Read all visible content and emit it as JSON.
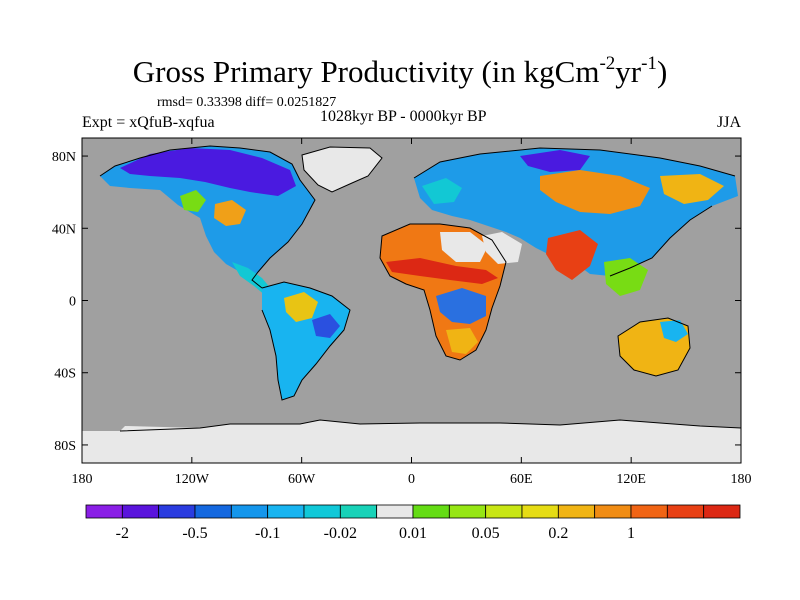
{
  "title": {
    "main": "Gross Primary Productivity (in kgCm",
    "exp1": "-2",
    "mid": "yr",
    "exp2": "-1",
    "end": ")"
  },
  "stats": {
    "rmsd_label": "rmsd= 0.33398",
    "diff_label": "diff= 0.0251827"
  },
  "experiment": "Expt = xQfuB-xqfua",
  "period": "1028kyr BP - 0000kyr BP",
  "season": "JJA",
  "colors": {
    "ocean": "#a0a0a0",
    "ice": "#e8e8e8",
    "coast": "#000000"
  },
  "lat_labels": [
    {
      "label": "80N",
      "value": 80
    },
    {
      "label": "40N",
      "value": 40
    },
    {
      "label": "0",
      "value": 0
    },
    {
      "label": "40S",
      "value": -40
    },
    {
      "label": "80S",
      "value": -80
    }
  ],
  "lon_labels": [
    {
      "label": "180",
      "value": -180
    },
    {
      "label": "120W",
      "value": -120
    },
    {
      "label": "60W",
      "value": -60
    },
    {
      "label": "0",
      "value": 0
    },
    {
      "label": "60E",
      "value": 60
    },
    {
      "label": "120E",
      "value": 120
    },
    {
      "label": "180",
      "value": 180
    }
  ],
  "colorbar": {
    "colors": [
      "#8a1ee6",
      "#5a14dc",
      "#2a3ce0",
      "#1468e0",
      "#1496ec",
      "#18b4f0",
      "#10c8d8",
      "#18d2b8",
      "#e8e8e8",
      "#64dc14",
      "#96e614",
      "#c8e614",
      "#e6dc14",
      "#f0b414",
      "#f08c14",
      "#f06414",
      "#e84014",
      "#dc2814"
    ],
    "labels": [
      {
        "text": "-2",
        "boundary": 1
      },
      {
        "text": "-0.5",
        "boundary": 3
      },
      {
        "text": "-0.1",
        "boundary": 5
      },
      {
        "text": "-0.02",
        "boundary": 7
      },
      {
        "text": "0.01",
        "boundary": 9
      },
      {
        "text": "0.05",
        "boundary": 11
      },
      {
        "text": "0.2",
        "boundary": 13
      },
      {
        "text": "1",
        "boundary": 15
      }
    ]
  }
}
